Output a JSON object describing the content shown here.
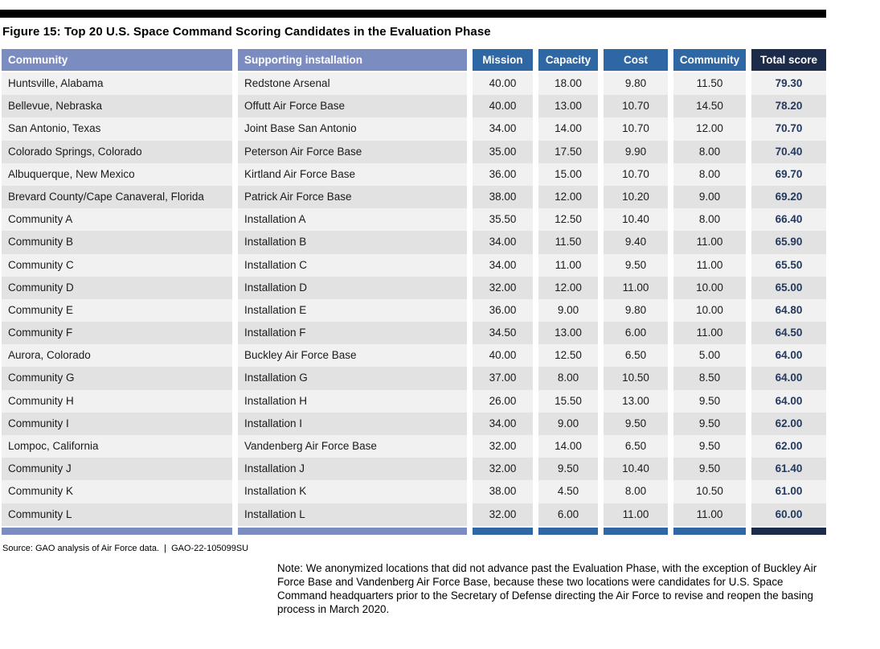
{
  "figure": {
    "title": "Figure 15: Top 20 U.S. Space Command Scoring Candidates in the Evaluation Phase"
  },
  "table": {
    "columns": [
      "Community",
      "Supporting installation",
      "Mission",
      "Capacity",
      "Cost",
      "Community",
      "Total score"
    ],
    "rows": [
      [
        "Huntsville, Alabama",
        "Redstone Arsenal",
        "40.00",
        "18.00",
        "9.80",
        "11.50",
        "79.30"
      ],
      [
        "Bellevue, Nebraska",
        "Offutt Air Force Base",
        "40.00",
        "13.00",
        "10.70",
        "14.50",
        "78.20"
      ],
      [
        "San Antonio, Texas",
        "Joint Base San Antonio",
        "34.00",
        "14.00",
        "10.70",
        "12.00",
        "70.70"
      ],
      [
        "Colorado Springs, Colorado",
        "Peterson Air Force Base",
        "35.00",
        "17.50",
        "9.90",
        "8.00",
        "70.40"
      ],
      [
        "Albuquerque, New Mexico",
        "Kirtland Air Force Base",
        "36.00",
        "15.00",
        "10.70",
        "8.00",
        "69.70"
      ],
      [
        "Brevard County/Cape Canaveral, Florida",
        "Patrick Air Force Base",
        "38.00",
        "12.00",
        "10.20",
        "9.00",
        "69.20"
      ],
      [
        "Community A",
        "Installation A",
        "35.50",
        "12.50",
        "10.40",
        "8.00",
        "66.40"
      ],
      [
        "Community B",
        "Installation B",
        "34.00",
        "11.50",
        "9.40",
        "11.00",
        "65.90"
      ],
      [
        "Community C",
        "Installation C",
        "34.00",
        "11.00",
        "9.50",
        "11.00",
        "65.50"
      ],
      [
        "Community D",
        "Installation D",
        "32.00",
        "12.00",
        "11.00",
        "10.00",
        "65.00"
      ],
      [
        "Community E",
        "Installation E",
        "36.00",
        "9.00",
        "9.80",
        "10.00",
        "64.80"
      ],
      [
        "Community F",
        "Installation F",
        "34.50",
        "13.00",
        "6.00",
        "11.00",
        "64.50"
      ],
      [
        "Aurora, Colorado",
        "Buckley Air Force Base",
        "40.00",
        "12.50",
        "6.50",
        "5.00",
        "64.00"
      ],
      [
        "Community G",
        "Installation G",
        "37.00",
        "8.00",
        "10.50",
        "8.50",
        "64.00"
      ],
      [
        "Community H",
        "Installation H",
        "26.00",
        "15.50",
        "13.00",
        "9.50",
        "64.00"
      ],
      [
        "Community I",
        "Installation I",
        "34.00",
        "9.00",
        "9.50",
        "9.50",
        "62.00"
      ],
      [
        "Lompoc, California",
        "Vandenberg Air Force Base",
        "32.00",
        "14.00",
        "6.50",
        "9.50",
        "62.00"
      ],
      [
        "Community J",
        "Installation J",
        "32.00",
        "9.50",
        "10.40",
        "9.50",
        "61.40"
      ],
      [
        "Community K",
        "Installation K",
        "38.00",
        "4.50",
        "8.00",
        "10.50",
        "61.00"
      ],
      [
        "Community L",
        "Installation L",
        "32.00",
        "6.00",
        "11.00",
        "11.00",
        "60.00"
      ]
    ]
  },
  "footer": {
    "source": "Source: GAO analysis of Air Force data.  |  GAO-22-105099SU",
    "note": "Note: We anonymized locations that did not advance past the Evaluation Phase, with the exception of Buckley Air Force Base and Vandenberg Air Force Base, because these two locations were candidates for U.S. Space Command headquarters prior to the Secretary of Defense directing the Air Force to revise and reopen the basing process in March 2020."
  },
  "colors": {
    "header_periwinkle": "#7b8cc0",
    "header_blue": "#2f67a5",
    "header_navy": "#1d2b4a",
    "row_light": "#f2f1f1",
    "row_dark": "#e3e2e2",
    "total_score_text": "#23395f",
    "top_rule": "#000000"
  }
}
